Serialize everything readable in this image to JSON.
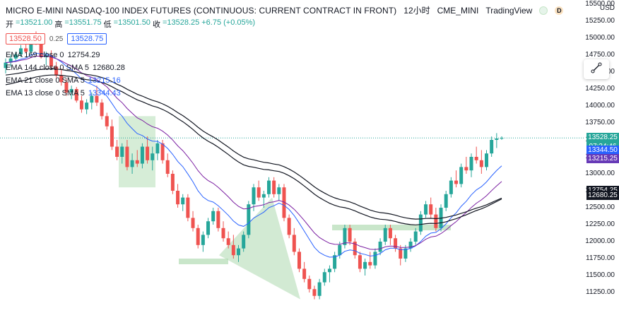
{
  "header": {
    "title": "MICRO E-MINI NASDAQ-100 INDEX FUTURES (CONTINUOUS: CURRENT CONTRACT IN FRONT)",
    "interval": "12小时",
    "exchange": "CME_MINI",
    "provider": "TradingView",
    "badge": "D",
    "ohlc": {
      "open_label": "开",
      "open": "=13521.00",
      "high_label": "高",
      "high": "=13551.75",
      "low_label": "低",
      "low": "=13501.50",
      "close_label": "收",
      "close": "=13528.25",
      "change": "+6.75 (+0.05%)"
    },
    "sell_price": "13528.50",
    "spread": "0.25",
    "buy_price": "13528.75"
  },
  "indicators": [
    {
      "name": "EMA 169 close 0",
      "value": "12754.29"
    },
    {
      "name": "EMA 144 close 0 SMA 5",
      "value": "12680.28"
    },
    {
      "name": "EMA 21 close 0 SMA 5",
      "value": "13215.16"
    },
    {
      "name": "EMA 13 close 0 SMA 5",
      "value": "13344.43"
    }
  ],
  "axis": {
    "currency": "USD",
    "ticks": [
      "15500.00",
      "15250.00",
      "15000.00",
      "14750.00",
      "14500.00",
      "14250.00",
      "14000.00",
      "13750.00",
      "13500.00",
      "13250.00",
      "13000.00",
      "12750.00",
      "12500.00",
      "12250.00",
      "12000.00",
      "11750.00",
      "11500.00",
      "11250.00"
    ],
    "labels": {
      "last": "13528.25",
      "countdown": "07:34:46",
      "ema13": "13344.50",
      "ema21": "13215.25",
      "ema169": "12754.25",
      "ema144": "12680.25"
    }
  },
  "colors": {
    "up": "#26a69a",
    "down": "#ef5350",
    "ema_fast": "#2962ff",
    "ema_mid": "#7b1fa2",
    "ema_slow": "#131722",
    "zone": "#a5d6a7",
    "last_price_bg": "#26a69a",
    "ema13_bg": "#2962ff",
    "ema21_bg": "#673ab7",
    "ema_long_bg": "#131722"
  },
  "chart_data": {
    "type": "candlestick",
    "symbol": "MICRO E-MINI NASDAQ-100 INDEX FUTURES",
    "timeframe": "12小时",
    "ylim": [
      11100,
      15700
    ],
    "candles": [
      [
        14560,
        14700,
        14480,
        14640
      ],
      [
        14640,
        14760,
        14580,
        14700
      ],
      [
        14700,
        14800,
        14650,
        14760
      ],
      [
        14760,
        14900,
        14720,
        14850
      ],
      [
        14850,
        14950,
        14780,
        14800
      ],
      [
        14800,
        15050,
        14760,
        15000
      ],
      [
        15000,
        15100,
        14900,
        14950
      ],
      [
        14950,
        15000,
        14700,
        14720
      ],
      [
        14720,
        14800,
        14600,
        14750
      ],
      [
        14750,
        14820,
        14550,
        14580
      ],
      [
        14580,
        14650,
        14420,
        14450
      ],
      [
        14450,
        14550,
        14300,
        14350
      ],
      [
        14350,
        14400,
        14150,
        14200
      ],
      [
        14200,
        14300,
        14100,
        14250
      ],
      [
        14250,
        14280,
        14050,
        14080
      ],
      [
        14080,
        14150,
        13900,
        13950
      ],
      [
        13950,
        14100,
        13880,
        14050
      ],
      [
        14050,
        14200,
        13950,
        14150
      ],
      [
        14150,
        14300,
        14000,
        14050
      ],
      [
        14050,
        14100,
        13800,
        13850
      ],
      [
        13850,
        13900,
        13650,
        13700
      ],
      [
        13700,
        13800,
        13350,
        13400
      ],
      [
        13400,
        13500,
        13200,
        13250
      ],
      [
        13250,
        13450,
        13150,
        13400
      ],
      [
        13400,
        13500,
        13050,
        13100
      ],
      [
        13100,
        13300,
        13000,
        13200
      ],
      [
        13200,
        13350,
        13100,
        13150
      ],
      [
        13150,
        13450,
        13080,
        13400
      ],
      [
        13400,
        13550,
        13150,
        13200
      ],
      [
        13200,
        13400,
        13050,
        13300
      ],
      [
        13300,
        13500,
        13200,
        13450
      ],
      [
        13450,
        13500,
        13150,
        13200
      ],
      [
        13200,
        13300,
        12950,
        13000
      ],
      [
        13000,
        13050,
        12700,
        12750
      ],
      [
        12750,
        12850,
        12500,
        12550
      ],
      [
        12550,
        12700,
        12450,
        12650
      ],
      [
        12650,
        12700,
        12300,
        12350
      ],
      [
        12350,
        12450,
        12150,
        12200
      ],
      [
        12200,
        12250,
        11900,
        11950
      ],
      [
        11950,
        12150,
        11850,
        12100
      ],
      [
        12100,
        12350,
        12050,
        12300
      ],
      [
        12300,
        12500,
        12250,
        12450
      ],
      [
        12450,
        12500,
        12150,
        12200
      ],
      [
        12200,
        12300,
        12000,
        12050
      ],
      [
        12050,
        12150,
        11900,
        11950
      ],
      [
        11950,
        12100,
        11750,
        11800
      ],
      [
        11800,
        11950,
        11700,
        11900
      ],
      [
        11900,
        12150,
        11850,
        12100
      ],
      [
        12100,
        12600,
        12050,
        12550
      ],
      [
        12550,
        12850,
        12450,
        12800
      ],
      [
        12800,
        12900,
        12600,
        12650
      ],
      [
        12650,
        12750,
        12500,
        12700
      ],
      [
        12700,
        12950,
        12650,
        12900
      ],
      [
        12900,
        12950,
        12650,
        12700
      ],
      [
        12700,
        12850,
        12600,
        12800
      ],
      [
        12800,
        12850,
        12300,
        12350
      ],
      [
        12350,
        12400,
        12050,
        12100
      ],
      [
        12100,
        12200,
        11800,
        11850
      ],
      [
        11850,
        11900,
        11550,
        11600
      ],
      [
        11600,
        11700,
        11400,
        11450
      ],
      [
        11450,
        11500,
        11250,
        11300
      ],
      [
        11300,
        11350,
        11150,
        11200
      ],
      [
        11200,
        11450,
        11150,
        11400
      ],
      [
        11400,
        11600,
        11350,
        11550
      ],
      [
        11550,
        11650,
        11400,
        11600
      ],
      [
        11600,
        11850,
        11550,
        11800
      ],
      [
        11800,
        12000,
        11750,
        11950
      ],
      [
        11950,
        12250,
        11900,
        12200
      ],
      [
        12200,
        12250,
        11950,
        12000
      ],
      [
        12000,
        12050,
        11750,
        11800
      ],
      [
        11800,
        11850,
        11550,
        11600
      ],
      [
        11600,
        11750,
        11500,
        11700
      ],
      [
        11700,
        11850,
        11600,
        11650
      ],
      [
        11650,
        11900,
        11600,
        11850
      ],
      [
        11850,
        12050,
        11800,
        12000
      ],
      [
        12000,
        12250,
        11950,
        12200
      ],
      [
        12200,
        12250,
        11950,
        12050
      ],
      [
        12050,
        12100,
        11850,
        11900
      ],
      [
        11900,
        11950,
        11650,
        11750
      ],
      [
        11750,
        11950,
        11700,
        11900
      ],
      [
        11900,
        12050,
        11850,
        12000
      ],
      [
        12000,
        12200,
        11950,
        12150
      ],
      [
        12150,
        12450,
        12100,
        12400
      ],
      [
        12400,
        12600,
        12350,
        12550
      ],
      [
        12550,
        12650,
        12350,
        12400
      ],
      [
        12400,
        12500,
        12150,
        12200
      ],
      [
        12200,
        12550,
        12150,
        12500
      ],
      [
        12500,
        12750,
        12450,
        12700
      ],
      [
        12700,
        12950,
        12650,
        12900
      ],
      [
        12900,
        13050,
        12800,
        12850
      ],
      [
        12850,
        13150,
        12800,
        13100
      ],
      [
        13100,
        13250,
        13000,
        13050
      ],
      [
        13050,
        13300,
        12950,
        13250
      ],
      [
        13250,
        13400,
        13150,
        13200
      ],
      [
        13200,
        13350,
        13000,
        13100
      ],
      [
        13100,
        13350,
        13050,
        13300
      ],
      [
        13300,
        13550,
        13250,
        13500
      ],
      [
        13500,
        13600,
        13380,
        13521
      ],
      [
        13521,
        13551.75,
        13501.5,
        13528.25
      ]
    ],
    "ema_labels": [
      "EMA 13",
      "EMA 21",
      "EMA 144",
      "EMA 169"
    ],
    "last_price": 13528.25
  }
}
